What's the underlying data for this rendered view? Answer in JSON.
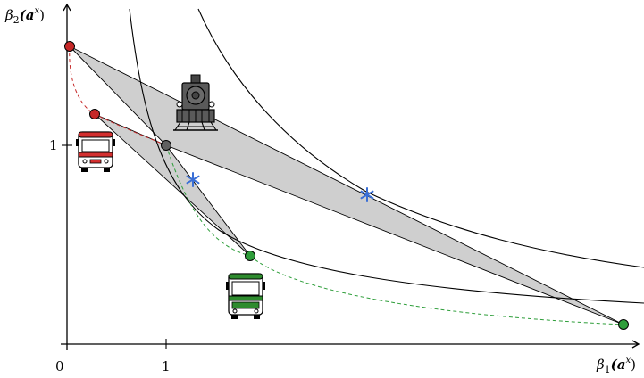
{
  "labels": {
    "y_axis_base": "β",
    "y_axis_sub": "2",
    "y_axis_arg": "(a",
    "y_axis_sup": "x",
    "y_axis_close": ")",
    "x_axis_base": "β",
    "x_axis_sub": "1",
    "x_axis_arg": "(a",
    "x_axis_sup": "x",
    "x_axis_close": ")",
    "origin": "0",
    "x_tick_1": "1",
    "y_tick_1": "1"
  },
  "icons": {
    "train": "steam-locomotive-icon",
    "red_bus": "bus-icon",
    "green_bus": "bus-icon"
  },
  "colors": {
    "red_point": "#c62828",
    "green_point": "#2e9e3a",
    "grey_point": "#606060",
    "region_fill": "#cfcfcf",
    "star": "#3a6fd6",
    "red_bus": "#d32f2f",
    "green_bus": "#2e8b2e",
    "train": "#444444"
  }
}
